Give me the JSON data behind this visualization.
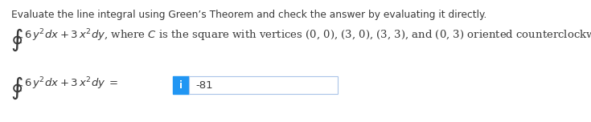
{
  "title_text": "Evaluate the line integral using Green’s Theorem and check the answer by evaluating it directly.",
  "line1_integral": "$\\oint_C$",
  "line1_rest": " $6\\,y^2dx + 3\\,x^2dy$, where $C$ is the square with vertices (0, 0), (3, 0), (3, 3), and (0, 3) oriented counterclockwise.",
  "line2_integral": "$\\oint_C$",
  "line2_rest": " $6\\,y^2dx + 3\\,x^2dy\\;=$",
  "answer": "-81",
  "icon_letter": "i",
  "icon_bg": "#2196F3",
  "icon_fg": "#ffffff",
  "answer_box_border": "#aac4e8",
  "answer_box_bg": "#ffffff",
  "text_color": "#3a3a3a",
  "bg_color": "#ffffff",
  "title_fontsize": 8.8,
  "body_fontsize": 9.5,
  "answer_fontsize": 9.5
}
